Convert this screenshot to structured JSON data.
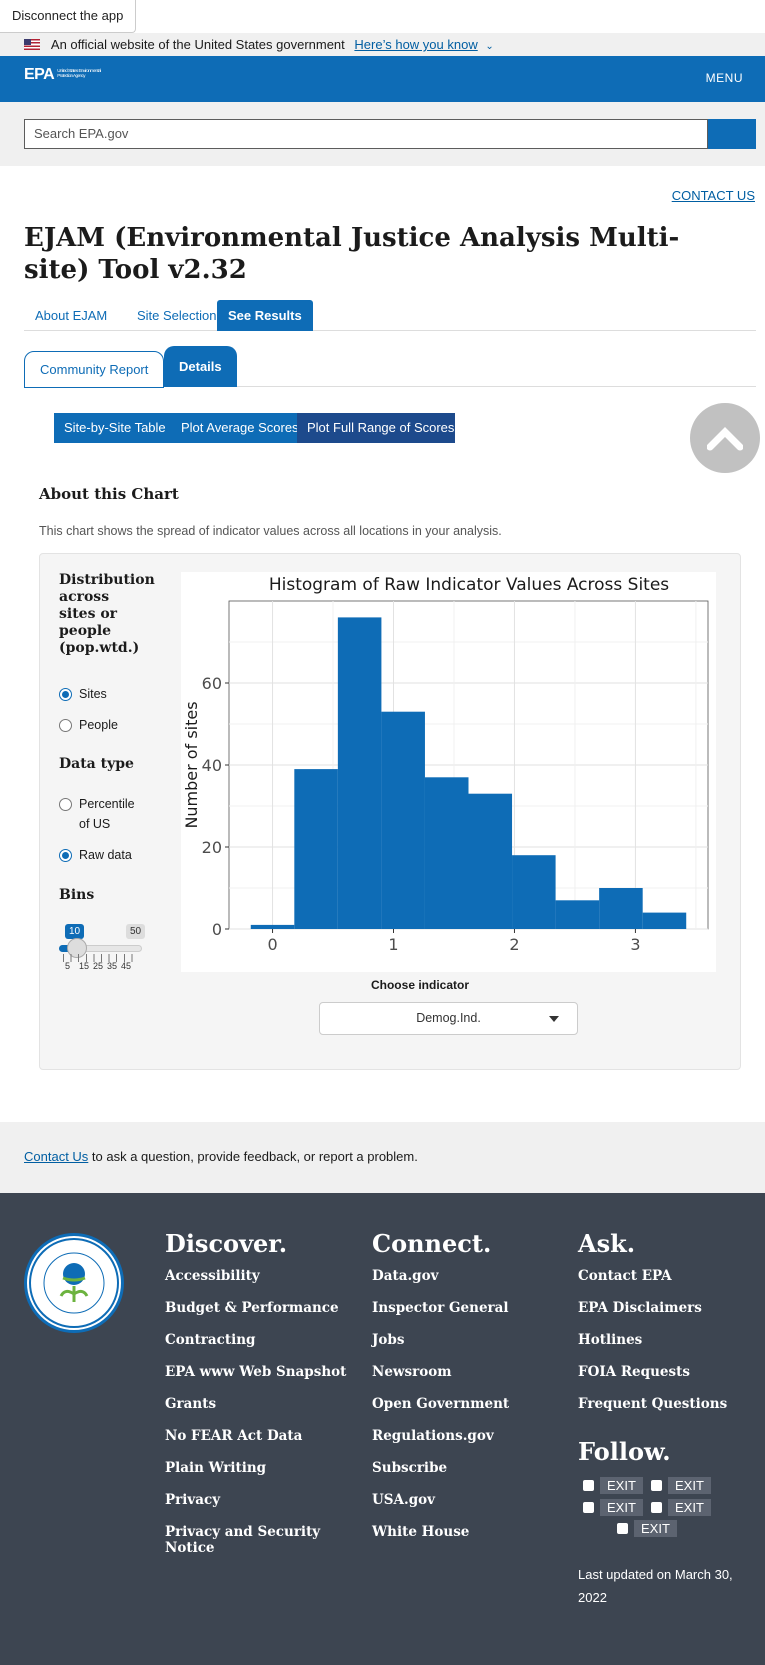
{
  "disconnect_label": "Disconnect the app",
  "banner": {
    "text": "An official website of the United States government",
    "link": "Here’s how you know"
  },
  "header": {
    "logo": "EPA",
    "logo_sub": "United States Environmental Protection Agency",
    "menu": "MENU"
  },
  "search": {
    "placeholder": "Search EPA.gov"
  },
  "contact_us_top": "CONTACT US",
  "page_title": "EJAM (Environmental Justice Analysis Multi-site) Tool v2.32",
  "main_tabs": [
    "About EJAM",
    "Site Selection",
    "See Results"
  ],
  "sub_tabs": [
    "Community Report",
    "Details"
  ],
  "detail_tabs": [
    "Site-by-Site Table",
    "Plot Average Scores",
    "Plot Full Range of Scores"
  ],
  "about": {
    "title": "About this Chart",
    "description": "This chart shows the spread of indicator values across all locations in your analysis."
  },
  "controls": {
    "distribution_title": "Distribution across sites or people (pop.wtd.)",
    "distribution_options": [
      "Sites",
      "People"
    ],
    "distribution_selected": "Sites",
    "datatype_title": "Data type",
    "datatype_options": [
      "Percentile of US",
      "Raw data"
    ],
    "datatype_selected": "Raw data",
    "bins_title": "Bins",
    "bins_value": "10",
    "bins_max": "50",
    "bins_ticks": [
      "5",
      "15",
      "25",
      "35",
      "45"
    ],
    "choose_indicator_label": "Choose indicator",
    "indicator_value": "Demog.Ind."
  },
  "chart_data": {
    "type": "bar",
    "title": "Histogram of Raw Indicator Values Across Sites",
    "xlabel": "",
    "ylabel": "Number of sites",
    "bin_edges": [
      -0.18,
      0.18,
      0.54,
      0.9,
      1.26,
      1.62,
      1.98,
      2.34,
      2.7,
      3.06,
      3.42
    ],
    "values": [
      1,
      39,
      76,
      53,
      37,
      33,
      18,
      7,
      10,
      4
    ],
    "xlim": [
      -0.36,
      3.6
    ],
    "ylim": [
      0,
      80
    ],
    "x_ticks": [
      "0",
      "1",
      "2",
      "3"
    ],
    "y_ticks": [
      "0",
      "20",
      "40",
      "60"
    ],
    "bar_color": "#0e6cb6",
    "grid": true
  },
  "contact_band": {
    "link": "Contact Us",
    "text": " to ask a question, provide feedback, or report a problem."
  },
  "footer": {
    "discover": {
      "title": "Discover.",
      "links": [
        "Accessibility",
        "Budget & Performance",
        "Contracting",
        "EPA www Web Snapshot",
        "Grants",
        "No FEAR Act Data",
        "Plain Writing",
        "Privacy",
        "Privacy and Security Notice"
      ]
    },
    "connect": {
      "title": "Connect.",
      "links": [
        "Data.gov",
        "Inspector General",
        "Jobs",
        "Newsroom",
        "Open Government",
        "Regulations.gov",
        "Subscribe",
        "USA.gov",
        "White House"
      ]
    },
    "ask": {
      "title": "Ask.",
      "links": [
        "Contact EPA",
        "EPA Disclaimers",
        "Hotlines",
        "FOIA Requests",
        "Frequent Questions"
      ]
    },
    "follow_title": "Follow.",
    "exit_label": "EXIT",
    "social_icons": [
      "facebook-icon",
      "twitter-icon",
      "youtube-icon",
      "flickr-icon",
      "instagram-icon"
    ],
    "last_updated": "Last updated on March 30, 2022"
  }
}
